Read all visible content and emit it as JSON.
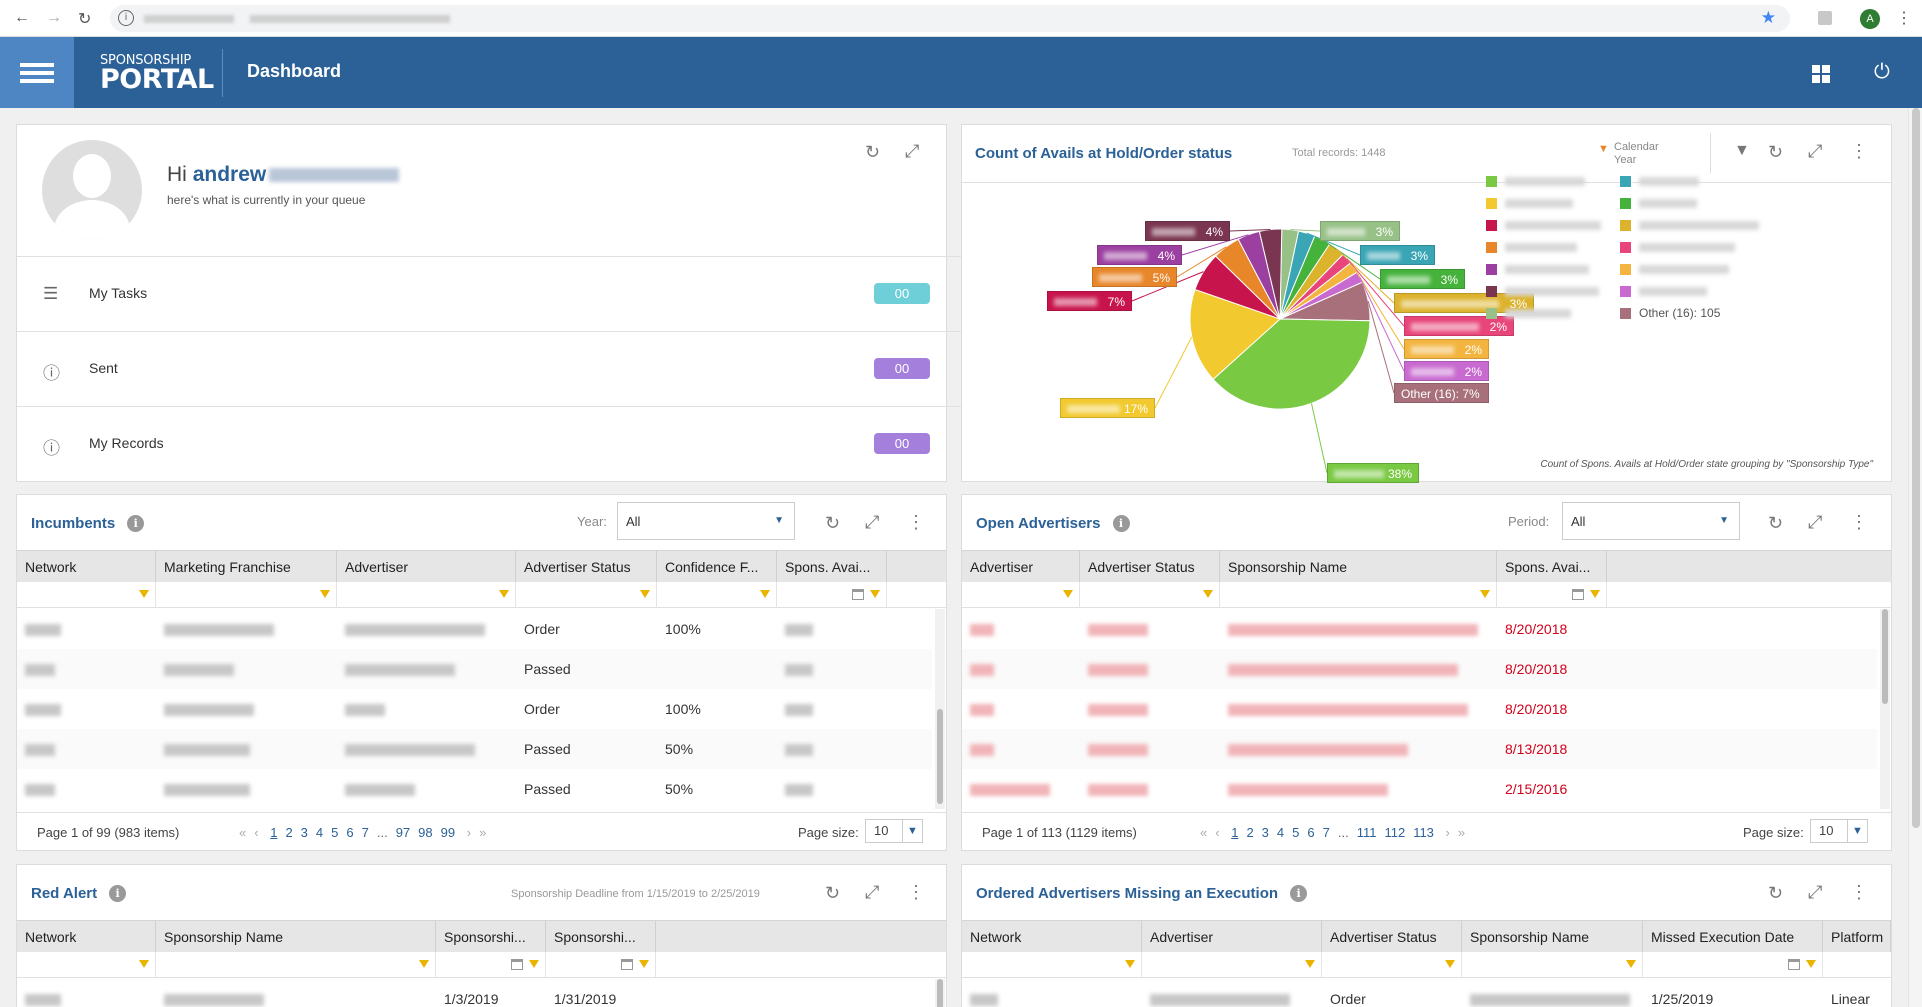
{
  "app": {
    "title": "Dashboard",
    "logo_line1": "SPONSORSHIP",
    "logo_line2": "PORTAL"
  },
  "browser": {
    "profile_initial": "A"
  },
  "welcome": {
    "greeting": "Hi",
    "user": "andrew",
    "subtitle": "here's what is currently in your queue",
    "queue": [
      {
        "label": "My Tasks",
        "count": "00",
        "color": "#6fcfd9"
      },
      {
        "label": "Sent",
        "count": "00",
        "color": "#a47fdc"
      },
      {
        "label": "My Records",
        "count": "00",
        "color": "#a47fdc"
      }
    ]
  },
  "avails_chart": {
    "title": "Count of Avails at Hold/Order status",
    "total": "Total records: 1448",
    "filter_label_1": "Calendar",
    "filter_label_2": "Year",
    "caption": "Count of Spons. Avails at Hold/Order state grouping by \"Sponsorship Type\"",
    "legend_other": "Other (16): 105"
  },
  "chart_data": {
    "type": "pie",
    "title": "Count of Avails at Hold/Order status",
    "slices": [
      {
        "label": "",
        "percent": 38,
        "color": "#7ac943"
      },
      {
        "label": "",
        "percent": 17,
        "color": "#f2ca2f"
      },
      {
        "label": "",
        "percent": 7,
        "color": "#c8144d"
      },
      {
        "label": "",
        "percent": 5,
        "color": "#e8862a"
      },
      {
        "label": "",
        "percent": 4,
        "color": "#9b3fa0"
      },
      {
        "label": "",
        "percent": 4,
        "color": "#7a3650"
      },
      {
        "label": "",
        "percent": 3,
        "color": "#98c188"
      },
      {
        "label": "",
        "percent": 3,
        "color": "#3aa5b4"
      },
      {
        "label": "",
        "percent": 3,
        "color": "#45b23c"
      },
      {
        "label": "",
        "percent": 3,
        "color": "#dcb32c"
      },
      {
        "label": "",
        "percent": 2,
        "color": "#e8457a"
      },
      {
        "label": "",
        "percent": 2,
        "color": "#f3b53f"
      },
      {
        "label": "",
        "percent": 2,
        "color": "#c96ad0"
      },
      {
        "label": "Other (16)",
        "percent": 7,
        "color": "#a8707a"
      }
    ]
  },
  "incumbents": {
    "title": "Incumbents",
    "year_label": "Year:",
    "year_value": "All",
    "columns": [
      "Network",
      "Marketing Franchise",
      "Advertiser",
      "Advertiser Status",
      "Confidence F...",
      "Spons. Avai..."
    ],
    "rows": [
      {
        "status": "Order",
        "confidence": "100%"
      },
      {
        "status": "Passed",
        "confidence": ""
      },
      {
        "status": "Order",
        "confidence": "100%"
      },
      {
        "status": "Passed",
        "confidence": "50%"
      },
      {
        "status": "Passed",
        "confidence": "50%"
      }
    ],
    "pager": {
      "info": "Page 1 of 99 (983 items)",
      "pages": [
        "1",
        "2",
        "3",
        "4",
        "5",
        "6",
        "7",
        "...",
        "97",
        "98",
        "99"
      ],
      "size_label": "Page size:",
      "size": "10"
    }
  },
  "open_advertisers": {
    "title": "Open Advertisers",
    "period_label": "Period:",
    "period_value": "All",
    "columns": [
      "Advertiser",
      "Advertiser Status",
      "Sponsorship Name",
      "Spons. Avai..."
    ],
    "rows": [
      {
        "date": "8/20/2018"
      },
      {
        "date": "8/20/2018"
      },
      {
        "date": "8/20/2018"
      },
      {
        "date": "8/13/2018"
      },
      {
        "date": "2/15/2016"
      }
    ],
    "pager": {
      "info": "Page 1 of 113 (1129 items)",
      "pages": [
        "1",
        "2",
        "3",
        "4",
        "5",
        "6",
        "7",
        "...",
        "111",
        "112",
        "113"
      ],
      "size_label": "Page size:",
      "size": "10"
    }
  },
  "red_alert": {
    "title": "Red Alert",
    "deadline": "Sponsorship Deadline from 1/15/2019 to 2/25/2019",
    "columns": [
      "Network",
      "Sponsorship Name",
      "Sponsorshi...",
      "Sponsorshi..."
    ],
    "rows": [
      {
        "start": "1/3/2019",
        "end": "1/31/2019"
      }
    ]
  },
  "missing_exec": {
    "title": "Ordered Advertisers Missing an Execution",
    "columns": [
      "Network",
      "Advertiser",
      "Advertiser Status",
      "Sponsorship Name",
      "Missed Execution Date",
      "Platform"
    ],
    "rows": [
      {
        "status": "Order",
        "date": "1/25/2019",
        "platform": "Linear"
      }
    ]
  }
}
